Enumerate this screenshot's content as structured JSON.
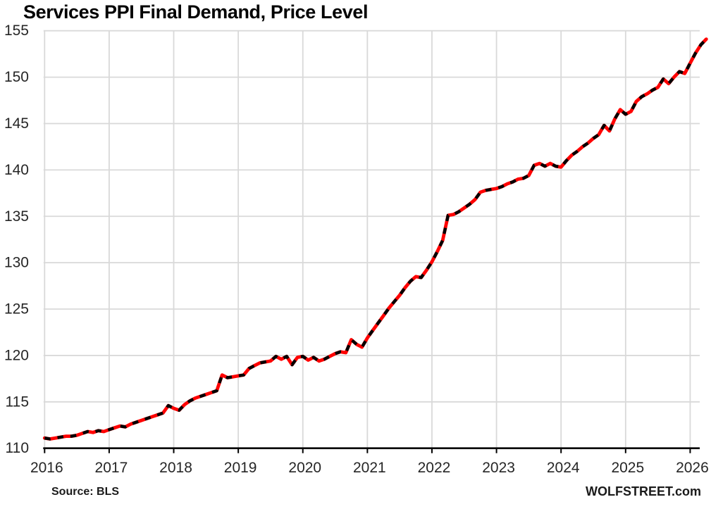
{
  "title": "Services PPI Final Demand, Price Level",
  "footer": {
    "source_label": "Source: BLS",
    "brand_label": "WOLFSTREET.com"
  },
  "chart_data": {
    "type": "line",
    "title": "Services PPI Final Demand, Price Level",
    "xlabel": "",
    "ylabel": "",
    "ylim": [
      110,
      155
    ],
    "y_ticks": [
      110,
      115,
      120,
      125,
      130,
      135,
      140,
      145,
      150,
      155
    ],
    "x_tick_labels": [
      "2016",
      "2017",
      "2018",
      "2019",
      "2020",
      "2021",
      "2022",
      "2023",
      "2024",
      "2025",
      "2026"
    ],
    "grid": true,
    "legend": "none",
    "frequency": "monthly",
    "start_period": "2016-01",
    "series": [
      {
        "name": "Services PPI Final Demand price level index",
        "values": [
          111.1,
          111.0,
          111.1,
          111.2,
          111.3,
          111.3,
          111.4,
          111.6,
          111.8,
          111.7,
          111.9,
          111.8,
          112.0,
          112.2,
          112.4,
          112.3,
          112.6,
          112.8,
          113.0,
          113.2,
          113.4,
          113.6,
          113.8,
          114.6,
          114.3,
          114.1,
          114.7,
          115.1,
          115.4,
          115.6,
          115.8,
          116.0,
          116.2,
          117.9,
          117.6,
          117.7,
          117.8,
          117.9,
          118.6,
          118.9,
          119.2,
          119.3,
          119.4,
          119.9,
          119.6,
          119.9,
          119.0,
          119.8,
          119.9,
          119.5,
          119.8,
          119.4,
          119.6,
          119.9,
          120.2,
          120.4,
          120.3,
          121.7,
          121.2,
          120.9,
          121.9,
          122.7,
          123.5,
          124.3,
          125.1,
          125.8,
          126.5,
          127.3,
          128.0,
          128.5,
          128.4,
          129.2,
          130.1,
          131.2,
          132.4,
          135.1,
          135.2,
          135.5,
          135.9,
          136.3,
          136.8,
          137.6,
          137.8,
          137.9,
          138.0,
          138.2,
          138.5,
          138.7,
          139.0,
          139.1,
          139.4,
          140.5,
          140.7,
          140.4,
          140.7,
          140.4,
          140.3,
          141.0,
          141.6,
          142.0,
          142.5,
          142.9,
          143.4,
          143.8,
          144.8,
          144.2,
          145.5,
          146.5,
          146.0,
          146.3,
          147.4,
          147.9,
          148.2,
          148.6,
          148.9,
          149.8,
          149.3,
          150.0,
          150.6,
          150.4,
          151.5,
          152.6,
          153.5,
          154.1
        ]
      }
    ],
    "colors": {
      "line": "#FF0000",
      "dash_overlay": "#000000",
      "gridline": "#D9D9D9",
      "axis": "#000000",
      "tick_text": "#262626"
    }
  }
}
